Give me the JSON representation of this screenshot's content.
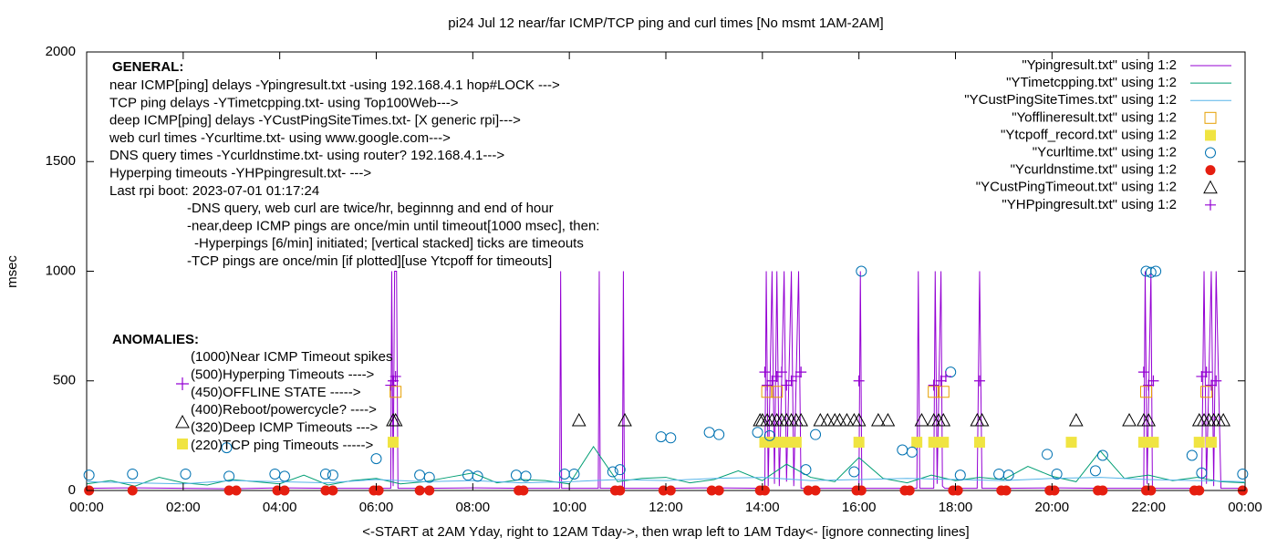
{
  "chart_data": {
    "type": "line",
    "title": "pi24 Jul 12  near/far ICMP/TCP ping and curl times [No msmt 1AM-2AM]",
    "xlabel": "<-START at 2AM Yday, right to 12AM Tday->, then wrap left to 1AM Tday<- [ignore connecting lines]",
    "ylabel": "msec",
    "xlim": [
      0,
      24
    ],
    "ylim": [
      0,
      2000
    ],
    "xticks": [
      {
        "value": 0,
        "label": "00:00"
      },
      {
        "value": 2,
        "label": "02:00"
      },
      {
        "value": 4,
        "label": "04:00"
      },
      {
        "value": 6,
        "label": "06:00"
      },
      {
        "value": 8,
        "label": "08:00"
      },
      {
        "value": 10,
        "label": "10:00"
      },
      {
        "value": 12,
        "label": "12:00"
      },
      {
        "value": 14,
        "label": "14:00"
      },
      {
        "value": 16,
        "label": "16:00"
      },
      {
        "value": 18,
        "label": "18:00"
      },
      {
        "value": 20,
        "label": "20:00"
      },
      {
        "value": 22,
        "label": "22:00"
      },
      {
        "value": 24,
        "label": "00:00"
      }
    ],
    "yticks": [
      0,
      500,
      1000,
      1500,
      2000
    ],
    "grid": false,
    "legend": "top-right",
    "annotations": {
      "general_heading": "GENERAL:",
      "general": [
        "near ICMP[ping] delays -Ypingresult.txt -using 192.168.4.1 hop#LOCK --->",
        "TCP ping delays -YTimetcpping.txt- using Top100Web--->",
        "deep ICMP[ping] delays -YCustPingSiteTimes.txt- [X generic rpi]--->",
        "web curl times -Ycurltime.txt- using www.google.com--->",
        "DNS query times -Ycurldnstime.txt- using router? 192.168.4.1--->",
        "Hyperping timeouts -YHPpingresult.txt- --->",
        "Last rpi boot: 2023-07-01 01:17:24"
      ],
      "notes": [
        "-DNS query, web curl are twice/hr, beginnng and end of hour",
        "-near,deep ICMP pings are once/min until timeout[1000 msec], then:",
        "-Hyperpings [6/min] initiated; [vertical stacked] ticks are timeouts",
        "-TCP pings are once/min [if plotted][use Ytcpoff for timeouts]"
      ],
      "anomalies_heading": "ANOMALIES:",
      "anomalies": [
        "(1000)Near ICMP Timeout spikes",
        "(500)Hyperping Timeouts ---->",
        "(450)OFFLINE STATE ----->",
        "(400)Reboot/powercycle? ---->",
        "(320)Deep ICMP Timeouts --->",
        "(220)TCP ping Timeouts ----->"
      ]
    },
    "series": [
      {
        "name": "\"Ypingresult.txt\" using 1:2",
        "style": "lines",
        "color": "#9400d3",
        "x": [
          0,
          1,
          2,
          3,
          4,
          5,
          6,
          6.3,
          6.32,
          6.35,
          6.38,
          6.42,
          6.45,
          7,
          8,
          9,
          9.8,
          9.82,
          9.84,
          10.6,
          10.62,
          10.64,
          11.1,
          11.12,
          11.14,
          12,
          13,
          14.05,
          14.08,
          14.12,
          14.2,
          14.25,
          14.3,
          14.35,
          14.45,
          14.5,
          14.6,
          14.65,
          14.75,
          14.8,
          15,
          16,
          16.03,
          16.06,
          17.2,
          17.23,
          17.26,
          17.55,
          17.58,
          17.62,
          17.7,
          17.73,
          17.78,
          18.45,
          18.5,
          18.55,
          19,
          20,
          21,
          21.9,
          21.93,
          21.97,
          22.05,
          22.08,
          22.12,
          23.1,
          23.15,
          23.2,
          23.3,
          23.35,
          23.4,
          23.5,
          24
        ],
        "values": [
          10,
          12,
          10,
          8,
          12,
          10,
          10,
          10,
          1000,
          20,
          1000,
          1000,
          10,
          10,
          12,
          10,
          10,
          1000,
          10,
          10,
          1000,
          10,
          10,
          1000,
          10,
          10,
          12,
          10,
          1000,
          20,
          1000,
          30,
          1000,
          20,
          1000,
          40,
          1000,
          20,
          1000,
          10,
          10,
          10,
          1000,
          10,
          10,
          1000,
          10,
          10,
          1000,
          30,
          1000,
          20,
          10,
          10,
          1000,
          10,
          10,
          12,
          10,
          10,
          1000,
          30,
          1000,
          20,
          10,
          10,
          1000,
          30,
          1000,
          20,
          1000,
          10,
          10
        ]
      },
      {
        "name": "\"YTimetcpping.txt\" using 1:2",
        "style": "lines",
        "color": "#009e73",
        "x": [
          0,
          0.5,
          1,
          1.5,
          2,
          2.5,
          3,
          3.5,
          4,
          4.5,
          5,
          5.5,
          6,
          6.5,
          7,
          7.5,
          8,
          8.5,
          9,
          9.5,
          10,
          10.5,
          11,
          11.5,
          12,
          12.5,
          13,
          13.5,
          14,
          14.5,
          15,
          15.5,
          16,
          16.5,
          17,
          17.5,
          18,
          18.5,
          19,
          19.5,
          20,
          20.5,
          21,
          21.5,
          22,
          22.5,
          23,
          23.5,
          24
        ],
        "values": [
          30,
          45,
          20,
          60,
          35,
          25,
          50,
          40,
          30,
          70,
          25,
          45,
          55,
          30,
          40,
          60,
          80,
          35,
          50,
          45,
          30,
          200,
          40,
          55,
          60,
          35,
          50,
          90,
          45,
          120,
          60,
          40,
          150,
          55,
          35,
          70,
          45,
          60,
          50,
          110,
          65,
          40,
          180,
          55,
          70,
          45,
          60,
          40,
          35
        ]
      },
      {
        "name": "\"YCustPingSiteTimes.txt\" using 1:2",
        "style": "lines",
        "color": "#56b4e9",
        "x": [
          0,
          1,
          2,
          3,
          4,
          5,
          6,
          7,
          8,
          9,
          10,
          11,
          12,
          13,
          14,
          15,
          16,
          17,
          18,
          19,
          20,
          21,
          22,
          23,
          24
        ],
        "values": [
          40,
          35,
          30,
          45,
          40,
          35,
          50,
          40,
          45,
          35,
          40,
          50,
          45,
          55,
          60,
          45,
          50,
          55,
          50,
          45,
          55,
          60,
          50,
          45,
          40
        ]
      },
      {
        "name": "\"Yofflineresult.txt\" using 1:2",
        "style": "points",
        "marker": "open-square",
        "color": "#e69f00",
        "x": [
          6.4,
          14.1,
          14.3,
          17.55,
          17.75,
          21.95,
          23.2
        ],
        "values": [
          450,
          450,
          450,
          450,
          450,
          450,
          450
        ]
      },
      {
        "name": "\"Ytcpoff_record.txt\" using 1:2",
        "style": "points",
        "marker": "filled-square",
        "color": "#f0e442",
        "x": [
          6.35,
          14.05,
          14.2,
          14.35,
          14.5,
          14.7,
          16,
          17.2,
          17.55,
          17.75,
          18.5,
          20.4,
          21.9,
          22.1,
          23.05,
          23.3
        ],
        "values": [
          220,
          220,
          220,
          220,
          220,
          220,
          220,
          220,
          220,
          220,
          220,
          220,
          220,
          220,
          220,
          220
        ]
      },
      {
        "name": "\"Ycurltime.txt\" using 1:2",
        "style": "points",
        "marker": "open-circle",
        "color": "#0072b2",
        "x": [
          0.05,
          0.95,
          2.05,
          2.95,
          2.9,
          3.9,
          4.1,
          4.95,
          5.1,
          6,
          6.9,
          7.1,
          7.9,
          8.1,
          8.9,
          9.1,
          9.9,
          10.1,
          10.9,
          11.05,
          11.9,
          12.1,
          12.9,
          13.1,
          13.9,
          14.15,
          14.9,
          15.1,
          15.9,
          16.05,
          16.9,
          17.1,
          17.9,
          18.1,
          18.9,
          19.1,
          19.9,
          20.1,
          20.9,
          21.05,
          21.95,
          22.05,
          22.15,
          22.9,
          23.1,
          23.95
        ],
        "values": [
          70,
          75,
          75,
          65,
          195,
          75,
          65,
          75,
          70,
          145,
          70,
          60,
          70,
          65,
          70,
          65,
          75,
          75,
          85,
          95,
          245,
          240,
          265,
          255,
          265,
          250,
          95,
          255,
          85,
          1000,
          185,
          175,
          540,
          70,
          75,
          70,
          165,
          75,
          90,
          160,
          1000,
          995,
          1000,
          160,
          80,
          75
        ]
      },
      {
        "name": "\"Ycurldnstime.txt\" using 1:2",
        "style": "points",
        "marker": "filled-circle",
        "color": "#e51e10",
        "x": [
          0.05,
          0.95,
          2.95,
          3.1,
          3.95,
          4.1,
          4.95,
          5.1,
          5.95,
          6.05,
          6.9,
          7.1,
          8.95,
          9.05,
          10.95,
          11.05,
          11.95,
          12.1,
          12.95,
          13.1,
          13.95,
          14.05,
          14.95,
          15.1,
          15.95,
          16.05,
          16.95,
          17.05,
          17.95,
          18.05,
          18.95,
          19.05,
          19.95,
          20.05,
          20.95,
          21.05,
          21.95,
          22.05,
          22.95,
          23.05,
          23.95
        ],
        "values": [
          0,
          0,
          0,
          0,
          0,
          0,
          0,
          0,
          0,
          0,
          0,
          0,
          0,
          0,
          0,
          0,
          0,
          0,
          0,
          0,
          0,
          0,
          0,
          0,
          0,
          0,
          0,
          0,
          0,
          0,
          0,
          0,
          0,
          0,
          0,
          0,
          0,
          0,
          0,
          0,
          0
        ]
      },
      {
        "name": "\"YCustPingTimeout.txt\" using 1:2",
        "style": "points",
        "marker": "open-triangle",
        "color": "#000000",
        "x": [
          6.35,
          6.4,
          10.2,
          11.15,
          13.95,
          14,
          14.1,
          14.2,
          14.3,
          14.4,
          14.5,
          14.6,
          14.7,
          14.8,
          15.2,
          15.35,
          15.5,
          15.6,
          15.75,
          15.9,
          16,
          16.4,
          16.6,
          17.3,
          17.55,
          17.65,
          17.75,
          18.45,
          18.55,
          20.5,
          21.6,
          21.9,
          22,
          23.05,
          23.15,
          23.25,
          23.35,
          23.45,
          23.55
        ],
        "values": [
          320,
          320,
          320,
          320,
          320,
          320,
          320,
          320,
          320,
          320,
          320,
          320,
          320,
          320,
          320,
          320,
          320,
          320,
          320,
          320,
          320,
          320,
          320,
          320,
          320,
          320,
          320,
          320,
          320,
          320,
          320,
          320,
          320,
          320,
          320,
          320,
          320,
          320,
          320
        ]
      },
      {
        "name": "\"YHPpingresult.txt\" using 1:2",
        "style": "points",
        "marker": "plus",
        "color": "#9400d3",
        "x": [
          6.3,
          6.35,
          6.4,
          14.05,
          14.1,
          14.2,
          14.3,
          14.4,
          14.5,
          14.6,
          14.7,
          14.8,
          16,
          17.55,
          17.7,
          17.8,
          18.5,
          21.9,
          22,
          22.1,
          23.1,
          23.2,
          23.3,
          23.4
        ],
        "values": [
          480,
          500,
          520,
          540,
          480,
          500,
          520,
          540,
          480,
          500,
          520,
          540,
          500,
          480,
          500,
          520,
          500,
          540,
          480,
          500,
          520,
          540,
          480,
          500
        ]
      }
    ]
  }
}
